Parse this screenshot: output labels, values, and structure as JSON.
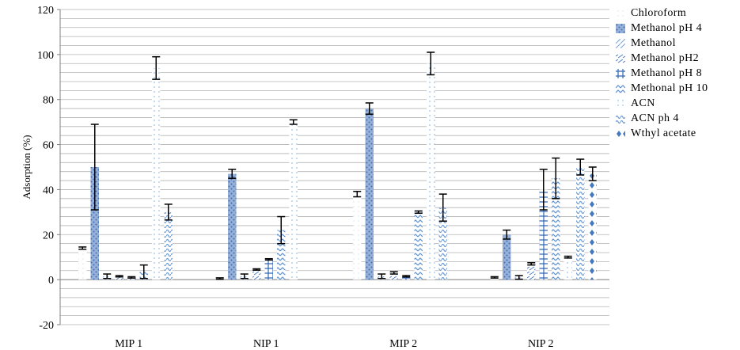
{
  "chart_data": {
    "type": "bar",
    "title": "",
    "xlabel": "",
    "ylabel": "Adsorption (%)",
    "ylim": [
      -20,
      120
    ],
    "yticks": [
      -20,
      0,
      20,
      40,
      60,
      80,
      100,
      120
    ],
    "grid": true,
    "legend_position": "right",
    "categories": [
      "MIP 1",
      "NIP 1",
      "MIP 2",
      "NIP 2"
    ],
    "series": [
      {
        "name": "Chloroform",
        "color": "#cfe3f2",
        "pattern": "dots-sparse",
        "values": [
          14,
          0.5,
          38,
          1
        ],
        "errors": [
          0.5,
          0.3,
          1.2,
          0.3
        ]
      },
      {
        "name": "Methanol pH 4",
        "color": "#3f6fb5",
        "pattern": "dense-dots",
        "values": [
          50,
          47,
          76,
          20
        ],
        "errors": [
          19,
          2,
          2.5,
          2
        ]
      },
      {
        "name": "Methanol",
        "color": "#7aa3d8",
        "pattern": "diagonal",
        "values": [
          1.5,
          1.5,
          1.5,
          1
        ],
        "errors": [
          1,
          1,
          1,
          0.8
        ]
      },
      {
        "name": "Methanol pH2",
        "color": "#4a7cc4",
        "pattern": "dashes",
        "values": [
          1.5,
          4.5,
          3,
          7
        ],
        "errors": [
          0.3,
          0.3,
          0.5,
          0.5
        ]
      },
      {
        "name": "Methanol pH 8",
        "color": "#2f66b8",
        "pattern": "grid",
        "values": [
          1,
          9,
          1.5,
          40
        ],
        "errors": [
          0.3,
          0.3,
          0.3,
          9
        ]
      },
      {
        "name": "Methonal pH 10",
        "color": "#5b8fd0",
        "pattern": "zigzag",
        "values": [
          3.5,
          22,
          30,
          45
        ],
        "errors": [
          3,
          6,
          0.5,
          9
        ]
      },
      {
        "name": "ACN",
        "color": "#8fb4e0",
        "pattern": "vertical-dots",
        "values": [
          94,
          70,
          96,
          10
        ],
        "errors": [
          5,
          1,
          5,
          0.4
        ]
      },
      {
        "name": "ACN ph 4",
        "color": "#6a9ad6",
        "pattern": "wave",
        "values": [
          30,
          null,
          32,
          50
        ],
        "errors": [
          3.5,
          null,
          6,
          3.5
        ]
      },
      {
        "name": "Wthyl acetate",
        "color": "#4678c0",
        "pattern": "diamonds",
        "values": [
          null,
          null,
          null,
          47
        ],
        "errors": [
          null,
          null,
          null,
          3
        ]
      }
    ]
  }
}
